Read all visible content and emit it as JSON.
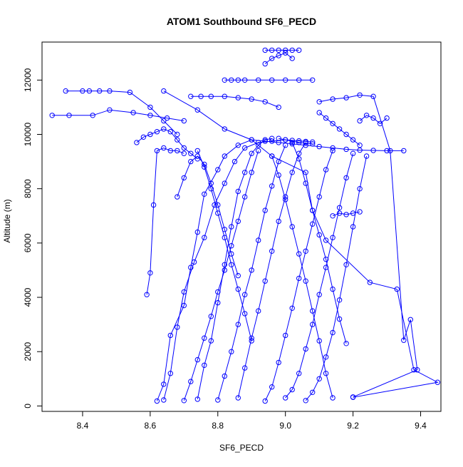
{
  "chart_data": {
    "type": "line",
    "title": "ATOM1 Southbound SF6_PECD",
    "xlabel": "SF6_PECD",
    "ylabel": "Altitude (m)",
    "xlim": [
      8.28,
      9.46
    ],
    "ylim": [
      -200,
      13400
    ],
    "x_ticks": [
      8.4,
      8.6,
      8.8,
      9.0,
      9.2,
      9.4
    ],
    "x_tick_labels": [
      "8.4",
      "8.6",
      "8.8",
      "9.0",
      "9.2",
      "9.4"
    ],
    "y_ticks": [
      0,
      2000,
      4000,
      6000,
      8000,
      10000,
      12000
    ],
    "y_tick_labels": [
      "0",
      "2000",
      "4000",
      "6000",
      "8000",
      "10000",
      "12000"
    ],
    "grid": false,
    "legend": "none",
    "marker": "open-circle",
    "color": "#0000ff",
    "series": [
      {
        "x": [
          9.2,
          9.45,
          9.38,
          9.33,
          9.25,
          9.12,
          9.08,
          9.06,
          8.96,
          8.9,
          8.82,
          8.74,
          8.64
        ],
        "y": [
          320,
          870,
          1330,
          4300,
          4550,
          6100,
          7200,
          8600,
          9200,
          9800,
          10200,
          10900,
          11600
        ]
      },
      {
        "x": [
          9.2,
          9.39,
          9.37,
          9.35,
          9.31,
          9.26,
          9.22,
          9.18,
          9.14,
          9.1
        ],
        "y": [
          330,
          1330,
          3180,
          2420,
          9400,
          11400,
          11450,
          11350,
          11300,
          11200
        ]
      },
      {
        "x": [
          8.62,
          8.64,
          8.66,
          8.7,
          8.72,
          8.74,
          8.76,
          8.8,
          8.82,
          8.86,
          8.9,
          8.94,
          8.98,
          9.02,
          9.06,
          9.1,
          9.14,
          9.18,
          9.22,
          9.26,
          9.3,
          9.35
        ],
        "y": [
          180,
          800,
          2600,
          3700,
          5100,
          6400,
          7800,
          8700,
          9200,
          9600,
          9800,
          9750,
          9700,
          9650,
          9600,
          9550,
          9500,
          9450,
          9420,
          9410,
          9400,
          9400
        ]
      },
      {
        "x": [
          8.64,
          8.66,
          8.68,
          8.7,
          8.73,
          8.76,
          8.79,
          8.82,
          8.85,
          8.88,
          8.92,
          8.96,
          9.0,
          9.04,
          9.08
        ],
        "y": [
          220,
          1200,
          2900,
          4200,
          5300,
          6200,
          7400,
          8200,
          9000,
          9500,
          9700,
          9750,
          9800,
          9700,
          9650
        ]
      },
      {
        "x": [
          8.56,
          8.58,
          8.6,
          8.62,
          8.64,
          8.66,
          8.68,
          8.7,
          8.72,
          8.74
        ],
        "y": [
          9700,
          9900,
          10000,
          10100,
          10200,
          10100,
          9800,
          9500,
          9300,
          9100
        ]
      },
      {
        "x": [
          8.35,
          8.4,
          8.42,
          8.45,
          8.48,
          8.54,
          8.6,
          8.64,
          8.68
        ],
        "y": [
          11600,
          11600,
          11600,
          11600,
          11600,
          11550,
          11000,
          10500,
          10000
        ]
      },
      {
        "x": [
          8.31,
          8.36,
          8.43,
          8.48,
          8.55,
          8.6,
          8.65,
          8.7
        ],
        "y": [
          10700,
          10700,
          10700,
          10900,
          10800,
          10700,
          10600,
          10500
        ]
      },
      {
        "x": [
          8.59,
          8.6,
          8.61,
          8.62,
          8.64,
          8.66,
          8.68,
          8.7
        ],
        "y": [
          4100,
          4900,
          7400,
          9400,
          9500,
          9400,
          9400,
          9300
        ]
      },
      {
        "x": [
          8.72,
          8.75,
          8.78,
          8.82,
          8.86,
          8.9,
          8.94,
          8.98
        ],
        "y": [
          11400,
          11400,
          11400,
          11400,
          11350,
          11300,
          11200,
          11000
        ]
      },
      {
        "x": [
          8.82,
          8.84,
          8.86,
          8.88,
          8.92,
          8.96,
          9.0,
          9.04,
          9.08
        ],
        "y": [
          12000,
          12000,
          12000,
          12000,
          12000,
          12000,
          12000,
          12000,
          12000
        ]
      },
      {
        "x": [
          8.94,
          8.96,
          8.98,
          9.0,
          9.02,
          9.04
        ],
        "y": [
          13100,
          13100,
          13100,
          13100,
          13100,
          13100
        ]
      },
      {
        "x": [
          8.94,
          8.96,
          8.98,
          9.0,
          9.02
        ],
        "y": [
          12600,
          12800,
          12900,
          13000,
          12800
        ]
      },
      {
        "x": [
          8.7,
          8.72,
          8.74,
          8.76,
          8.78,
          8.8,
          8.82,
          8.84,
          8.86,
          8.88,
          8.9,
          8.92
        ],
        "y": [
          200,
          900,
          1700,
          2500,
          3300,
          4200,
          5000,
          5900,
          6800,
          7700,
          8600,
          9400
        ]
      },
      {
        "x": [
          8.74,
          8.76,
          8.78,
          8.8,
          8.82,
          8.84,
          8.86,
          8.88,
          8.9,
          8.92,
          8.94,
          8.96
        ],
        "y": [
          250,
          1500,
          2400,
          3800,
          5200,
          6600,
          7900,
          8600,
          9300,
          9600,
          9800,
          9850
        ]
      },
      {
        "x": [
          8.8,
          8.82,
          8.84,
          8.86,
          8.88,
          8.9,
          8.92,
          8.94,
          8.96,
          8.98,
          9.0
        ],
        "y": [
          220,
          1100,
          2000,
          3000,
          4100,
          5000,
          6100,
          7200,
          8100,
          9000,
          9600
        ]
      },
      {
        "x": [
          8.86,
          8.88,
          8.9,
          8.92,
          8.94,
          8.96,
          8.98,
          9.0,
          9.02,
          9.04,
          9.06
        ],
        "y": [
          300,
          1400,
          2500,
          3500,
          4600,
          5700,
          6800,
          7700,
          8600,
          9300,
          9700
        ]
      },
      {
        "x": [
          8.94,
          8.96,
          8.98,
          9.0,
          9.02,
          9.04,
          9.06,
          9.08,
          9.1,
          9.12,
          9.14
        ],
        "y": [
          180,
          700,
          1600,
          2600,
          3600,
          4700,
          5700,
          6700,
          7700,
          8700,
          9400
        ]
      },
      {
        "x": [
          9.0,
          9.02,
          9.04,
          9.06,
          9.08,
          9.1,
          9.12,
          9.14,
          9.16,
          9.18,
          9.2
        ],
        "y": [
          300,
          600,
          1200,
          2100,
          3000,
          4100,
          5100,
          6200,
          7300,
          8400,
          9300
        ]
      },
      {
        "x": [
          9.06,
          9.08,
          9.1,
          9.12,
          9.14,
          9.16,
          9.18,
          9.2,
          9.22,
          9.24
        ],
        "y": [
          200,
          500,
          1000,
          1800,
          2700,
          3900,
          5200,
          6600,
          8000,
          9200
        ]
      },
      {
        "x": [
          9.14,
          9.12,
          9.1,
          9.08,
          9.06,
          9.04,
          9.02,
          9.0,
          8.98,
          8.96
        ],
        "y": [
          300,
          1200,
          2400,
          3500,
          4600,
          5600,
          6600,
          7600,
          8500,
          9200
        ]
      },
      {
        "x": [
          9.18,
          9.16,
          9.14,
          9.12,
          9.1,
          9.08,
          9.06,
          9.04,
          9.02
        ],
        "y": [
          2300,
          3200,
          4300,
          5400,
          6300,
          7200,
          8200,
          9100,
          9700
        ]
      },
      {
        "x": [
          8.86,
          8.84,
          8.82,
          8.8,
          8.78,
          8.76,
          8.74,
          8.72,
          8.7,
          8.68
        ],
        "y": [
          4800,
          5600,
          6500,
          7400,
          8200,
          8900,
          9200,
          9000,
          8400,
          7700
        ]
      },
      {
        "x": [
          8.9,
          8.88,
          8.86,
          8.84,
          8.82,
          8.8,
          8.78,
          8.76,
          8.74
        ],
        "y": [
          2400,
          3400,
          4300,
          5200,
          6200,
          7100,
          8000,
          8800,
          9400
        ]
      },
      {
        "x": [
          9.1,
          9.12,
          9.14,
          9.16,
          9.18,
          9.2,
          9.22
        ],
        "y": [
          10800,
          10600,
          10400,
          10200,
          10000,
          9800,
          9600
        ]
      },
      {
        "x": [
          9.22,
          9.24,
          9.26,
          9.28,
          9.3
        ],
        "y": [
          10500,
          10700,
          10600,
          10400,
          10600
        ]
      },
      {
        "x": [
          9.14,
          9.16,
          9.18,
          9.2,
          9.22
        ],
        "y": [
          7000,
          7100,
          7050,
          7100,
          7150
        ]
      },
      {
        "x": [
          8.98,
          9.0,
          9.02,
          9.04,
          9.06,
          9.08
        ],
        "y": [
          9850,
          9800,
          9780,
          9760,
          9740,
          9720
        ]
      }
    ]
  }
}
